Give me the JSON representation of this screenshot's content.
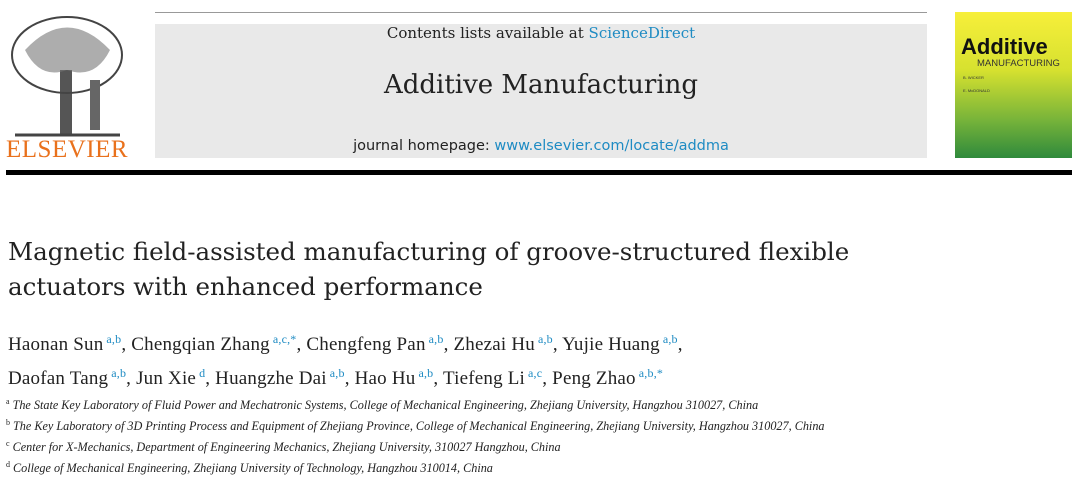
{
  "header": {
    "publisher": "ELSEVIER",
    "contents_prefix": "Contents lists available at ",
    "contents_link": "ScienceDirect",
    "journal": "Additive Manufacturing",
    "homepage_prefix": "journal homepage: ",
    "homepage_link": "www.elsevier.com/locate/addma"
  },
  "cover": {
    "title": "Additive",
    "subtitle": "MANUFACTURING",
    "editor1": "B. WICKER",
    "editor2": "E. McDONALD",
    "colors": [
      "#f7ef3a",
      "#2f8a3c"
    ]
  },
  "article": {
    "title": "Magnetic field-assisted manufacturing of groove-structured flexible actuators with enhanced performance",
    "authors": [
      {
        "name": "Haonan Sun",
        "aff": "a,b"
      },
      {
        "name": "Chengqian Zhang",
        "aff": "a,c,*"
      },
      {
        "name": "Chengfeng Pan",
        "aff": "a,b"
      },
      {
        "name": "Zhezai Hu",
        "aff": "a,b"
      },
      {
        "name": "Yujie Huang",
        "aff": "a,b"
      },
      {
        "name": "Daofan Tang",
        "aff": "a,b"
      },
      {
        "name": "Jun Xie",
        "aff": "d"
      },
      {
        "name": "Huangzhe Dai",
        "aff": "a,b"
      },
      {
        "name": "Hao Hu",
        "aff": "a,b"
      },
      {
        "name": "Tiefeng Li",
        "aff": "a,c"
      },
      {
        "name": "Peng Zhao",
        "aff": "a,b,*"
      }
    ],
    "affiliations": [
      {
        "key": "a",
        "text": "The State Key Laboratory of Fluid Power and Mechatronic Systems, College of Mechanical Engineering, Zhejiang University, Hangzhou 310027, China"
      },
      {
        "key": "b",
        "text": "The Key Laboratory of 3D Printing Process and Equipment of Zhejiang Province, College of Mechanical Engineering, Zhejiang University, Hangzhou 310027, China"
      },
      {
        "key": "c",
        "text": "Center for X-Mechanics, Department of Engineering Mechanics, Zhejiang University, 310027 Hangzhou, China"
      },
      {
        "key": "d",
        "text": "College of Mechanical Engineering, Zhejiang University of Technology, Hangzhou 310014, China"
      }
    ]
  }
}
